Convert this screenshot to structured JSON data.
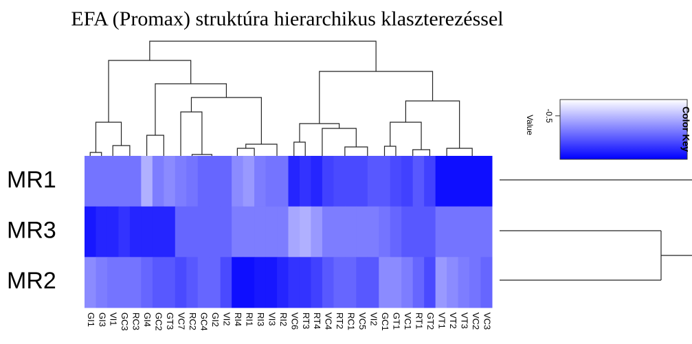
{
  "chart_data": {
    "type": "heatmap",
    "title": "EFA (Promax) struktúra hierarchikus klaszterezéssel",
    "columns": [
      "GI1",
      "GI3",
      "VI1",
      "GC3",
      "RC3",
      "GI4",
      "GC2",
      "GT3",
      "VC7",
      "RC2",
      "GC4",
      "GI2",
      "VI2",
      "RI4",
      "RI1",
      "RI3",
      "VI3",
      "RI2",
      "VC6",
      "RT3",
      "RT4",
      "VC4",
      "RT2",
      "RC1",
      "VC5",
      "VI2",
      "GC1",
      "GT1",
      "VC1",
      "RT1",
      "GT2",
      "VT1",
      "VT2",
      "VT3",
      "VC2",
      "VC3"
    ],
    "rows": [
      "MR1",
      "MR3",
      "MR2"
    ],
    "values": [
      [
        -0.65,
        -0.65,
        -0.65,
        -0.65,
        -0.65,
        -0.52,
        -0.63,
        -0.6,
        -0.63,
        -0.65,
        -0.68,
        -0.68,
        -0.68,
        -0.6,
        -0.57,
        -0.63,
        -0.65,
        -0.65,
        -0.82,
        -0.79,
        -0.82,
        -0.76,
        -0.74,
        -0.74,
        -0.74,
        -0.71,
        -0.71,
        -0.74,
        -0.76,
        -0.71,
        -0.76,
        -0.87,
        -0.87,
        -0.87,
        -0.87,
        -0.87
      ],
      [
        -0.85,
        -0.82,
        -0.82,
        -0.79,
        -0.82,
        -0.82,
        -0.82,
        -0.82,
        -0.68,
        -0.68,
        -0.68,
        -0.68,
        -0.68,
        -0.63,
        -0.63,
        -0.63,
        -0.63,
        -0.63,
        -0.54,
        -0.52,
        -0.57,
        -0.63,
        -0.63,
        -0.63,
        -0.63,
        -0.63,
        -0.65,
        -0.68,
        -0.71,
        -0.71,
        -0.71,
        -0.65,
        -0.65,
        -0.65,
        -0.65,
        -0.65
      ],
      [
        -0.6,
        -0.63,
        -0.65,
        -0.65,
        -0.65,
        -0.68,
        -0.71,
        -0.71,
        -0.74,
        -0.71,
        -0.68,
        -0.68,
        -0.74,
        -0.87,
        -0.87,
        -0.85,
        -0.85,
        -0.82,
        -0.79,
        -0.79,
        -0.76,
        -0.71,
        -0.68,
        -0.68,
        -0.71,
        -0.71,
        -0.6,
        -0.6,
        -0.63,
        -0.68,
        -0.74,
        -0.57,
        -0.6,
        -0.63,
        -0.65,
        -0.68
      ]
    ],
    "zlim": [
      -0.9,
      -0.35
    ],
    "zticks": [
      -0.5
    ],
    "low_color": "#0000ff",
    "high_color": "#ffffff",
    "color_key_title": "Color Key",
    "color_key_label": "Value"
  }
}
